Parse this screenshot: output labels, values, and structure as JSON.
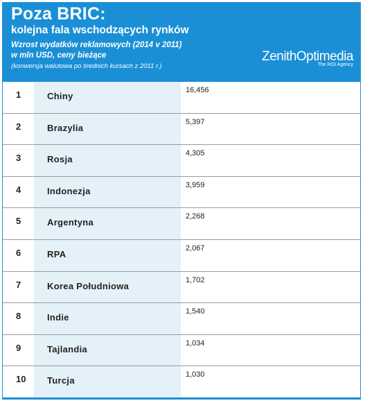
{
  "header": {
    "title": "Poza BRIC:",
    "subtitle": "kolejna fala wschodzących rynków",
    "desc_line1": "Wzrost wydatków reklamowych (2014 v 2011)",
    "desc_line2": "w mln USD, ceny bieżące",
    "desc_line3": "(konwersja walutowa po średnich kursach z 2011 r.)",
    "brand_name": "ZenithOptimedia",
    "brand_tagline": "The ROI Agency"
  },
  "colors": {
    "accent": "#1a8fd6",
    "column_shade": "#e5f1f8"
  },
  "chart_data": {
    "type": "table",
    "title": "Poza BRIC:",
    "subtitle": "kolejna fala wschodzących rynków",
    "rows": [
      {
        "rank": "1",
        "country": "Chiny",
        "value": "16,456"
      },
      {
        "rank": "2",
        "country": "Brazylia",
        "value": "5,397"
      },
      {
        "rank": "3",
        "country": "Rosja",
        "value": "4,305"
      },
      {
        "rank": "4",
        "country": "Indonezja",
        "value": "3,959"
      },
      {
        "rank": "5",
        "country": "Argentyna",
        "value": "2,268"
      },
      {
        "rank": "6",
        "country": "RPA",
        "value": "2,067"
      },
      {
        "rank": "7",
        "country": "Korea Południowa",
        "value": "1,702"
      },
      {
        "rank": "8",
        "country": "Indie",
        "value": "1,540"
      },
      {
        "rank": "9",
        "country": "Tajlandia",
        "value": "1,034"
      },
      {
        "rank": "10",
        "country": "Turcja",
        "value": "1,030"
      }
    ]
  }
}
